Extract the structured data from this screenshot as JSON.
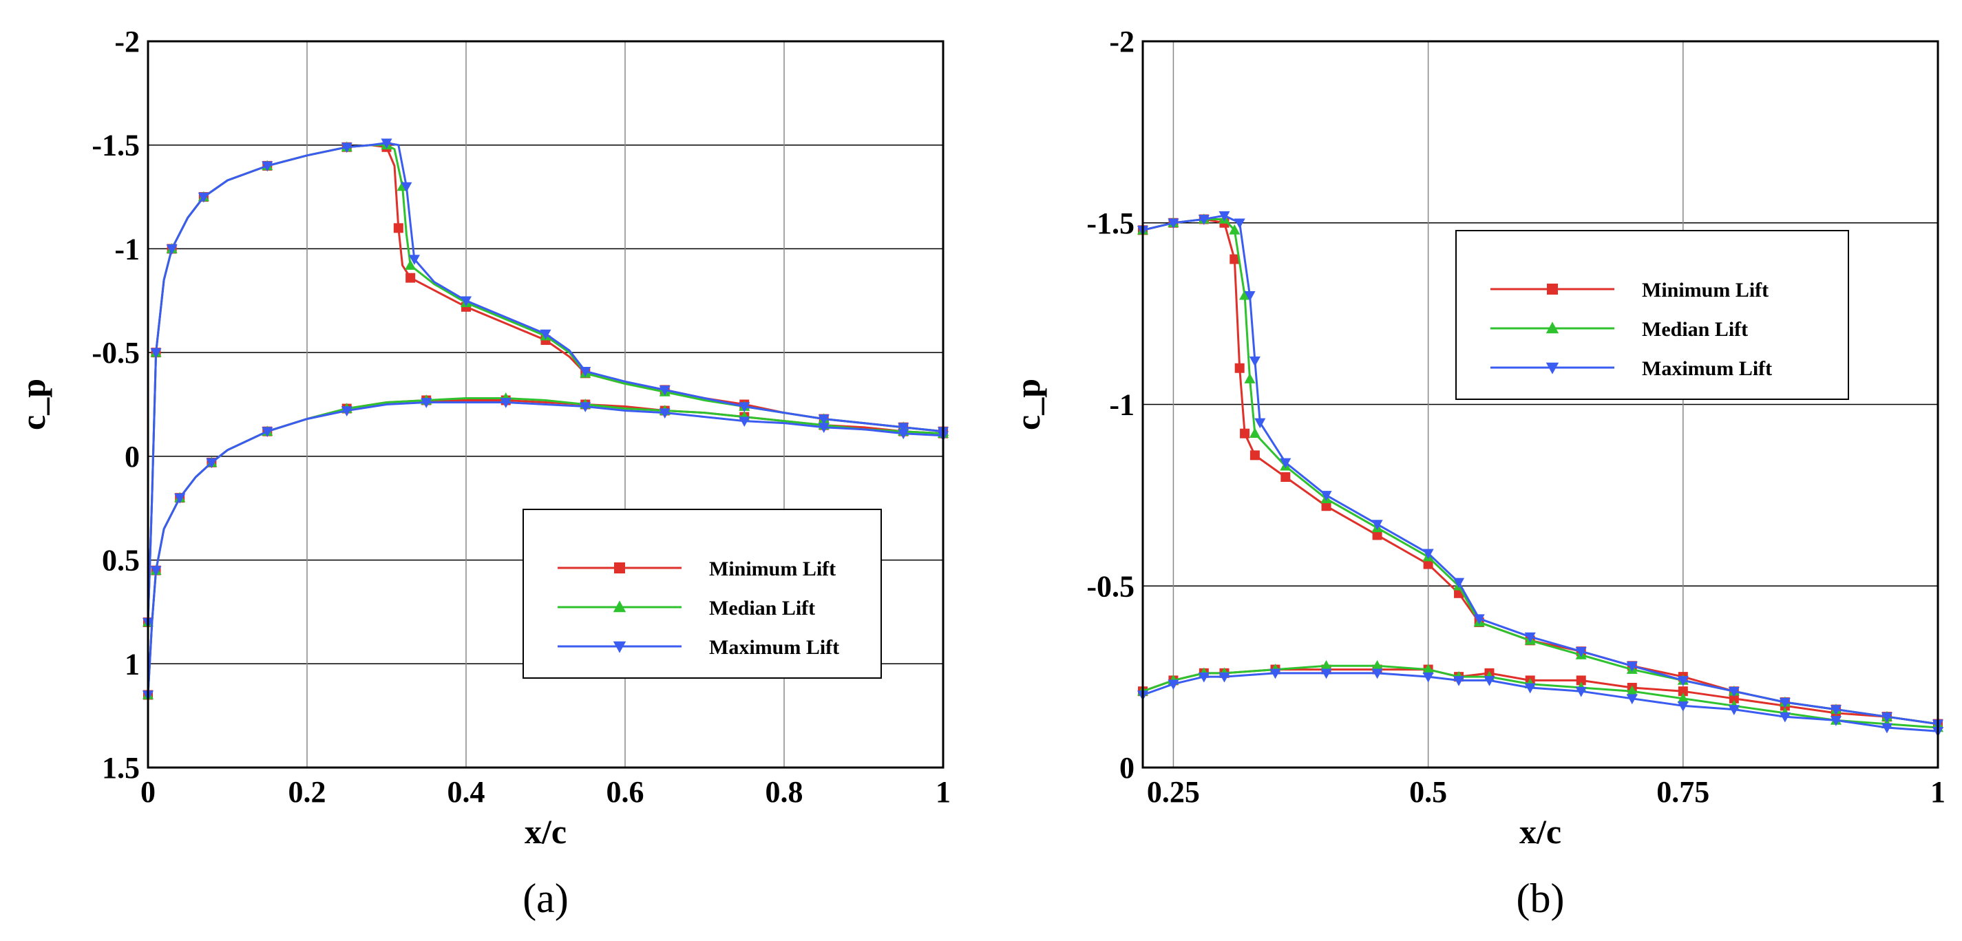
{
  "chart_data": [
    {
      "type": "line",
      "panel_label": "(a)",
      "xlabel": "x/c",
      "ylabel": "c_p",
      "xlim": [
        0,
        1
      ],
      "ylim": [
        1.5,
        -2
      ],
      "y_inverted": true,
      "grid": true,
      "x_ticks": [
        0,
        0.2,
        0.4,
        0.6,
        0.8,
        1
      ],
      "x_tick_labels": [
        "0",
        "0.2",
        "0.4",
        "0.6",
        "0.8",
        "1"
      ],
      "y_ticks": [
        -2,
        -1.5,
        -1,
        -0.5,
        0,
        0.5,
        1,
        1.5
      ],
      "y_tick_labels": [
        "-2",
        "-1.5",
        "-1",
        "-0.5",
        "0",
        "0.5",
        "1",
        "1.5"
      ],
      "legend_position": "lower-right",
      "series": [
        {
          "name": "Minimum Lift",
          "color": "#e0302a",
          "marker": "square",
          "upper_x": [
            0,
            0.005,
            0.01,
            0.02,
            0.03,
            0.05,
            0.07,
            0.1,
            0.15,
            0.2,
            0.25,
            0.28,
            0.3,
            0.31,
            0.315,
            0.32,
            0.33,
            0.36,
            0.4,
            0.45,
            0.5,
            0.53,
            0.55,
            0.6,
            0.65,
            0.7,
            0.75,
            0.8,
            0.85,
            0.9,
            0.95,
            1.0
          ],
          "upper_y": [
            0.8,
            0.2,
            -0.5,
            -0.85,
            -1.0,
            -1.15,
            -1.25,
            -1.33,
            -1.4,
            -1.45,
            -1.49,
            -1.5,
            -1.49,
            -1.4,
            -1.1,
            -0.92,
            -0.86,
            -0.8,
            -0.72,
            -0.64,
            -0.56,
            -0.48,
            -0.4,
            -0.35,
            -0.32,
            -0.28,
            -0.25,
            -0.21,
            -0.18,
            -0.16,
            -0.14,
            -0.12
          ],
          "lower_x": [
            0,
            0.005,
            0.01,
            0.02,
            0.04,
            0.06,
            0.08,
            0.1,
            0.15,
            0.2,
            0.25,
            0.3,
            0.35,
            0.4,
            0.45,
            0.5,
            0.55,
            0.6,
            0.65,
            0.7,
            0.75,
            0.8,
            0.85,
            0.9,
            0.95,
            1.0
          ],
          "lower_y": [
            1.15,
            0.8,
            0.55,
            0.35,
            0.2,
            0.1,
            0.03,
            -0.03,
            -0.12,
            -0.18,
            -0.23,
            -0.26,
            -0.27,
            -0.27,
            -0.27,
            -0.26,
            -0.25,
            -0.24,
            -0.22,
            -0.21,
            -0.19,
            -0.17,
            -0.15,
            -0.14,
            -0.12,
            -0.11
          ]
        },
        {
          "name": "Median Lift",
          "color": "#2ec22e",
          "marker": "triangle-up",
          "upper_x": [
            0,
            0.005,
            0.01,
            0.02,
            0.03,
            0.05,
            0.07,
            0.1,
            0.15,
            0.2,
            0.25,
            0.28,
            0.3,
            0.31,
            0.32,
            0.325,
            0.33,
            0.36,
            0.4,
            0.45,
            0.5,
            0.53,
            0.55,
            0.6,
            0.65,
            0.7,
            0.75,
            0.8,
            0.85,
            0.9,
            0.95,
            1.0
          ],
          "upper_y": [
            0.8,
            0.2,
            -0.5,
            -0.85,
            -1.0,
            -1.15,
            -1.25,
            -1.33,
            -1.4,
            -1.45,
            -1.49,
            -1.5,
            -1.5,
            -1.48,
            -1.3,
            -1.07,
            -0.92,
            -0.83,
            -0.74,
            -0.66,
            -0.58,
            -0.5,
            -0.4,
            -0.35,
            -0.31,
            -0.27,
            -0.24,
            -0.21,
            -0.18,
            -0.16,
            -0.14,
            -0.12
          ],
          "lower_x": [
            0,
            0.005,
            0.01,
            0.02,
            0.04,
            0.06,
            0.08,
            0.1,
            0.15,
            0.2,
            0.25,
            0.3,
            0.35,
            0.4,
            0.45,
            0.5,
            0.55,
            0.6,
            0.65,
            0.7,
            0.75,
            0.8,
            0.85,
            0.9,
            0.95,
            1.0
          ],
          "lower_y": [
            1.15,
            0.8,
            0.55,
            0.35,
            0.2,
            0.1,
            0.03,
            -0.03,
            -0.12,
            -0.18,
            -0.23,
            -0.26,
            -0.27,
            -0.28,
            -0.28,
            -0.27,
            -0.25,
            -0.23,
            -0.22,
            -0.21,
            -0.19,
            -0.17,
            -0.15,
            -0.13,
            -0.12,
            -0.11
          ]
        },
        {
          "name": "Maximum Lift",
          "color": "#3a5cf0",
          "marker": "triangle-down",
          "upper_x": [
            0,
            0.005,
            0.01,
            0.02,
            0.03,
            0.05,
            0.07,
            0.1,
            0.15,
            0.2,
            0.25,
            0.28,
            0.3,
            0.315,
            0.325,
            0.33,
            0.335,
            0.36,
            0.4,
            0.45,
            0.5,
            0.53,
            0.55,
            0.6,
            0.65,
            0.7,
            0.75,
            0.8,
            0.85,
            0.9,
            0.95,
            1.0
          ],
          "upper_y": [
            0.8,
            0.2,
            -0.5,
            -0.85,
            -1.0,
            -1.15,
            -1.25,
            -1.33,
            -1.4,
            -1.45,
            -1.49,
            -1.5,
            -1.51,
            -1.5,
            -1.3,
            -1.12,
            -0.95,
            -0.84,
            -0.75,
            -0.67,
            -0.59,
            -0.51,
            -0.41,
            -0.36,
            -0.32,
            -0.28,
            -0.24,
            -0.21,
            -0.18,
            -0.16,
            -0.14,
            -0.12
          ],
          "lower_x": [
            0,
            0.005,
            0.01,
            0.02,
            0.04,
            0.06,
            0.08,
            0.1,
            0.15,
            0.2,
            0.25,
            0.3,
            0.35,
            0.4,
            0.45,
            0.5,
            0.55,
            0.6,
            0.65,
            0.7,
            0.75,
            0.8,
            0.85,
            0.9,
            0.95,
            1.0
          ],
          "lower_y": [
            1.15,
            0.8,
            0.55,
            0.35,
            0.2,
            0.1,
            0.03,
            -0.03,
            -0.12,
            -0.18,
            -0.22,
            -0.25,
            -0.26,
            -0.26,
            -0.26,
            -0.25,
            -0.24,
            -0.22,
            -0.21,
            -0.19,
            -0.17,
            -0.16,
            -0.14,
            -0.13,
            -0.11,
            -0.1
          ]
        }
      ]
    },
    {
      "type": "line",
      "panel_label": "(b)",
      "xlabel": "x/c",
      "ylabel": "c_p",
      "xlim": [
        0.22,
        1
      ],
      "ylim": [
        0,
        -2
      ],
      "y_inverted": true,
      "grid": true,
      "x_ticks": [
        0.25,
        0.5,
        0.75,
        1
      ],
      "x_tick_labels": [
        "0.25",
        "0.5",
        "0.75",
        "1"
      ],
      "y_ticks": [
        -2,
        -1.5,
        -1,
        -0.5,
        0
      ],
      "y_tick_labels": [
        "-2",
        "-1.5",
        "-1",
        "-0.5",
        "0"
      ],
      "legend_position": "top-right",
      "series": [
        {
          "name": "Minimum Lift",
          "color": "#e0302a",
          "marker": "square",
          "upper_x": [
            0.22,
            0.25,
            0.28,
            0.3,
            0.31,
            0.315,
            0.32,
            0.33,
            0.36,
            0.4,
            0.45,
            0.5,
            0.53,
            0.55,
            0.6,
            0.65,
            0.7,
            0.75,
            0.8,
            0.85,
            0.9,
            0.95,
            1.0
          ],
          "upper_y": [
            -1.48,
            -1.5,
            -1.51,
            -1.5,
            -1.4,
            -1.1,
            -0.92,
            -0.86,
            -0.8,
            -0.72,
            -0.64,
            -0.56,
            -0.48,
            -0.4,
            -0.35,
            -0.32,
            -0.28,
            -0.25,
            -0.21,
            -0.18,
            -0.16,
            -0.14,
            -0.12
          ],
          "lower_x": [
            0.22,
            0.25,
            0.28,
            0.3,
            0.35,
            0.4,
            0.45,
            0.5,
            0.53,
            0.56,
            0.6,
            0.65,
            0.7,
            0.75,
            0.8,
            0.85,
            0.9,
            0.95,
            1.0
          ],
          "lower_y": [
            -0.21,
            -0.24,
            -0.26,
            -0.26,
            -0.27,
            -0.27,
            -0.27,
            -0.27,
            -0.25,
            -0.26,
            -0.24,
            -0.24,
            -0.22,
            -0.21,
            -0.19,
            -0.17,
            -0.15,
            -0.14,
            -0.12
          ]
        },
        {
          "name": "Median Lift",
          "color": "#2ec22e",
          "marker": "triangle-up",
          "upper_x": [
            0.22,
            0.25,
            0.28,
            0.3,
            0.31,
            0.32,
            0.325,
            0.33,
            0.36,
            0.4,
            0.45,
            0.5,
            0.53,
            0.55,
            0.6,
            0.65,
            0.7,
            0.75,
            0.8,
            0.85,
            0.9,
            0.95,
            1.0
          ],
          "upper_y": [
            -1.48,
            -1.5,
            -1.51,
            -1.51,
            -1.48,
            -1.3,
            -1.07,
            -0.92,
            -0.83,
            -0.74,
            -0.66,
            -0.58,
            -0.5,
            -0.4,
            -0.35,
            -0.31,
            -0.27,
            -0.24,
            -0.21,
            -0.18,
            -0.16,
            -0.14,
            -0.12
          ],
          "lower_x": [
            0.22,
            0.25,
            0.28,
            0.3,
            0.35,
            0.4,
            0.45,
            0.5,
            0.53,
            0.56,
            0.6,
            0.65,
            0.7,
            0.75,
            0.8,
            0.85,
            0.9,
            0.95,
            1.0
          ],
          "lower_y": [
            -0.21,
            -0.24,
            -0.26,
            -0.26,
            -0.27,
            -0.28,
            -0.28,
            -0.27,
            -0.25,
            -0.25,
            -0.23,
            -0.22,
            -0.21,
            -0.19,
            -0.17,
            -0.15,
            -0.13,
            -0.12,
            -0.11
          ]
        },
        {
          "name": "Maximum Lift",
          "color": "#3a5cf0",
          "marker": "triangle-down",
          "upper_x": [
            0.22,
            0.25,
            0.28,
            0.3,
            0.315,
            0.325,
            0.33,
            0.335,
            0.36,
            0.4,
            0.45,
            0.5,
            0.53,
            0.55,
            0.6,
            0.65,
            0.7,
            0.75,
            0.8,
            0.85,
            0.9,
            0.95,
            1.0
          ],
          "upper_y": [
            -1.48,
            -1.5,
            -1.51,
            -1.52,
            -1.5,
            -1.3,
            -1.12,
            -0.95,
            -0.84,
            -0.75,
            -0.67,
            -0.59,
            -0.51,
            -0.41,
            -0.36,
            -0.32,
            -0.28,
            -0.24,
            -0.21,
            -0.18,
            -0.16,
            -0.14,
            -0.12
          ],
          "lower_x": [
            0.22,
            0.25,
            0.28,
            0.3,
            0.35,
            0.4,
            0.45,
            0.5,
            0.53,
            0.56,
            0.6,
            0.65,
            0.7,
            0.75,
            0.8,
            0.85,
            0.9,
            0.95,
            1.0
          ],
          "lower_y": [
            -0.2,
            -0.23,
            -0.25,
            -0.25,
            -0.26,
            -0.26,
            -0.26,
            -0.25,
            -0.24,
            -0.24,
            -0.22,
            -0.21,
            -0.19,
            -0.17,
            -0.16,
            -0.14,
            -0.13,
            -0.11,
            -0.1
          ]
        }
      ]
    }
  ]
}
